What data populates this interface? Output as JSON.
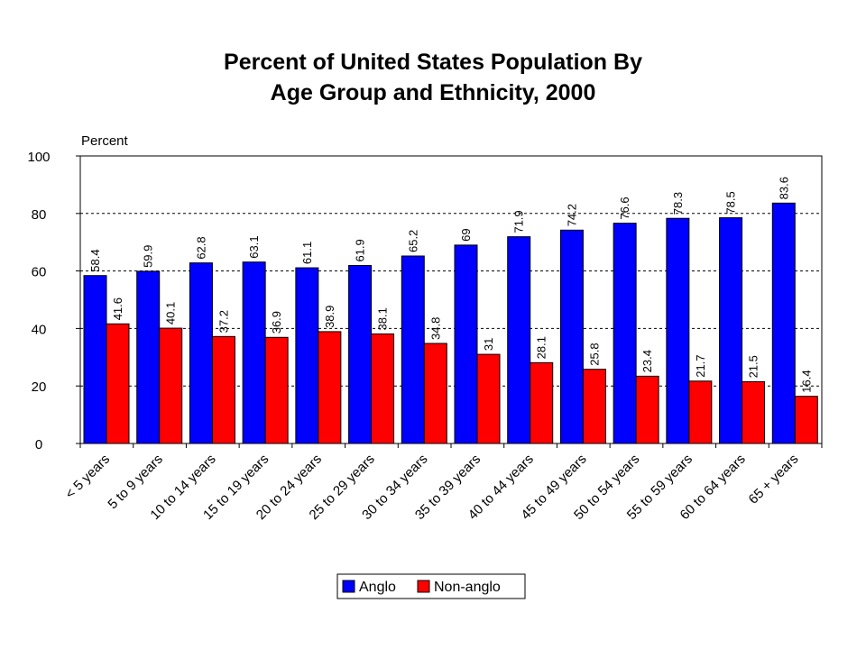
{
  "chart_data": {
    "type": "bar",
    "title": [
      "Percent of United States Population By",
      "Age Group and Ethnicity, 2000"
    ],
    "ylabel": "Percent",
    "ylim": [
      0,
      100
    ],
    "yticks": [
      0,
      20,
      40,
      60,
      80,
      100
    ],
    "grid": true,
    "legend_position": "bottom",
    "categories": [
      "< 5 years",
      "5 to 9 years",
      "10 to 14 years",
      "15 to 19 years",
      "20 to 24 years",
      "25 to 29 years",
      "30 to 34 years",
      "35 to 39 years",
      "40 to 44 years",
      "45 to 49 years",
      "50 to 54 years",
      "55 to 59 years",
      "60 to 64 years",
      "65 + years"
    ],
    "series": [
      {
        "name": "Anglo",
        "color": "#0000FF",
        "values": [
          58.4,
          59.9,
          62.8,
          63.1,
          61.1,
          61.9,
          65.2,
          69,
          71.9,
          74.2,
          76.6,
          78.3,
          78.5,
          83.6
        ]
      },
      {
        "name": "Non-anglo",
        "color": "#FF0000",
        "values": [
          41.6,
          40.1,
          37.2,
          36.9,
          38.9,
          38.1,
          34.8,
          31,
          28.1,
          25.8,
          23.4,
          21.7,
          21.5,
          16.4
        ]
      }
    ]
  }
}
